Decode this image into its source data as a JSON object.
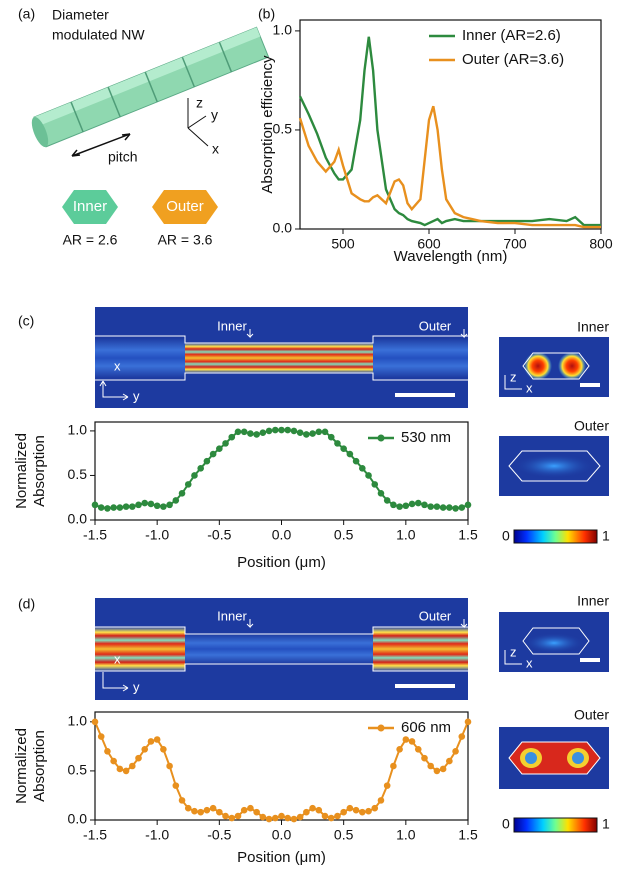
{
  "chart_data": [
    {
      "type": "line",
      "xlabel": "Wavelength (nm)",
      "ylabel": "Absorption efficiency",
      "x": [
        450,
        460,
        470,
        480,
        490,
        495,
        500,
        510,
        520,
        525,
        530,
        535,
        540,
        550,
        560,
        565,
        570,
        575,
        580,
        590,
        595,
        600,
        605,
        610,
        615,
        620,
        630,
        640,
        650,
        660,
        680,
        700,
        720,
        740,
        760,
        770,
        780,
        800
      ],
      "series": [
        {
          "name": "Inner (AR=2.6)",
          "color": "#2d8a3e",
          "values": [
            0.67,
            0.58,
            0.48,
            0.36,
            0.28,
            0.25,
            0.25,
            0.3,
            0.55,
            0.8,
            0.97,
            0.8,
            0.5,
            0.2,
            0.1,
            0.08,
            0.07,
            0.05,
            0.04,
            0.03,
            0.02,
            0.03,
            0.04,
            0.05,
            0.03,
            0.04,
            0.05,
            0.04,
            0.04,
            0.04,
            0.04,
            0.04,
            0.04,
            0.05,
            0.04,
            0.06,
            0.02,
            0.02
          ]
        },
        {
          "name": "Outer (AR=3.6)",
          "color": "#e8901e",
          "values": [
            0.56,
            0.42,
            0.34,
            0.29,
            0.34,
            0.4,
            0.32,
            0.18,
            0.15,
            0.14,
            0.14,
            0.16,
            0.17,
            0.13,
            0.24,
            0.25,
            0.22,
            0.13,
            0.1,
            0.15,
            0.35,
            0.55,
            0.62,
            0.5,
            0.3,
            0.15,
            0.08,
            0.06,
            0.05,
            0.04,
            0.03,
            0.03,
            0.02,
            0.02,
            0.02,
            0.02,
            0.01,
            0.01
          ]
        }
      ],
      "xlim": [
        450,
        800
      ],
      "xticks": [
        500,
        600,
        700,
        800
      ],
      "ylim": [
        0,
        1.055
      ],
      "yticks": [
        {
          "value": 0,
          "label": "0.0"
        },
        {
          "value": 0.5,
          "label": "0.5"
        },
        {
          "value": 1,
          "label": "1.0"
        }
      ],
      "markers": false,
      "legend": "upper right"
    },
    {
      "type": "line",
      "xlabel": "Position (μm)",
      "ylabel": [
        "Normalized",
        "Absorption"
      ],
      "x": [
        -1.5,
        -1.45,
        -1.4,
        -1.35,
        -1.3,
        -1.25,
        -1.2,
        -1.15,
        -1.1,
        -1.05,
        -1.0,
        -0.95,
        -0.9,
        -0.85,
        -0.8,
        -0.75,
        -0.7,
        -0.65,
        -0.6,
        -0.55,
        -0.5,
        -0.45,
        -0.4,
        -0.35,
        -0.3,
        -0.25,
        -0.2,
        -0.15,
        -0.1,
        -0.05,
        0,
        0.05,
        0.1,
        0.15,
        0.2,
        0.25,
        0.3,
        0.35,
        0.4,
        0.45,
        0.5,
        0.55,
        0.6,
        0.65,
        0.7,
        0.75,
        0.8,
        0.85,
        0.9,
        0.95,
        1.0,
        1.05,
        1.1,
        1.15,
        1.2,
        1.25,
        1.3,
        1.35,
        1.4,
        1.45,
        1.5
      ],
      "series": [
        {
          "name": "530 nm",
          "color": "#2d8a3e",
          "values": [
            0.17,
            0.14,
            0.13,
            0.14,
            0.14,
            0.15,
            0.15,
            0.17,
            0.19,
            0.18,
            0.16,
            0.15,
            0.17,
            0.22,
            0.3,
            0.4,
            0.5,
            0.58,
            0.66,
            0.74,
            0.8,
            0.86,
            0.93,
            0.99,
            0.99,
            0.97,
            0.96,
            0.98,
            1.0,
            1.01,
            1.01,
            1.01,
            1.0,
            0.98,
            0.96,
            0.97,
            0.99,
            0.99,
            0.93,
            0.86,
            0.8,
            0.74,
            0.66,
            0.58,
            0.5,
            0.4,
            0.3,
            0.22,
            0.17,
            0.15,
            0.16,
            0.18,
            0.19,
            0.17,
            0.15,
            0.15,
            0.14,
            0.14,
            0.13,
            0.14,
            0.17
          ]
        }
      ],
      "xlim": [
        -1.5,
        1.5
      ],
      "xticks": [
        -1.5,
        {
          "value": -1,
          "label": "-1.0"
        },
        -0.5,
        {
          "value": 0,
          "label": "0.0"
        },
        0.5,
        {
          "value": 1,
          "label": "1.0"
        },
        1.5
      ],
      "ylim": [
        0,
        1.1
      ],
      "yticks": [
        {
          "value": 0,
          "label": "0.0"
        },
        {
          "value": 0.5,
          "label": "0.5"
        },
        {
          "value": 1,
          "label": "1.0"
        }
      ],
      "markers": true,
      "legend": "upper right"
    },
    {
      "type": "line",
      "xlabel": "Position (μm)",
      "ylabel": [
        "Normalized",
        "Absorption"
      ],
      "x": [
        -1.5,
        -1.45,
        -1.4,
        -1.35,
        -1.3,
        -1.25,
        -1.2,
        -1.15,
        -1.1,
        -1.05,
        -1.0,
        -0.95,
        -0.9,
        -0.85,
        -0.8,
        -0.75,
        -0.7,
        -0.65,
        -0.6,
        -0.55,
        -0.5,
        -0.45,
        -0.4,
        -0.35,
        -0.3,
        -0.25,
        -0.2,
        -0.15,
        -0.1,
        -0.05,
        0,
        0.05,
        0.1,
        0.15,
        0.2,
        0.25,
        0.3,
        0.35,
        0.4,
        0.45,
        0.5,
        0.55,
        0.6,
        0.65,
        0.7,
        0.75,
        0.8,
        0.85,
        0.9,
        0.95,
        1.0,
        1.05,
        1.1,
        1.15,
        1.2,
        1.25,
        1.3,
        1.35,
        1.4,
        1.45,
        1.5
      ],
      "series": [
        {
          "name": "606 nm",
          "color": "#e8901e",
          "values": [
            1.0,
            0.85,
            0.7,
            0.6,
            0.52,
            0.5,
            0.55,
            0.63,
            0.72,
            0.8,
            0.82,
            0.72,
            0.55,
            0.35,
            0.2,
            0.12,
            0.09,
            0.08,
            0.1,
            0.12,
            0.08,
            0.04,
            0.02,
            0.04,
            0.1,
            0.12,
            0.08,
            0.03,
            0.01,
            0.02,
            0.04,
            0.02,
            0.01,
            0.03,
            0.08,
            0.12,
            0.1,
            0.04,
            0.02,
            0.04,
            0.08,
            0.12,
            0.1,
            0.08,
            0.09,
            0.12,
            0.2,
            0.35,
            0.55,
            0.72,
            0.82,
            0.8,
            0.72,
            0.63,
            0.55,
            0.5,
            0.52,
            0.6,
            0.7,
            0.85,
            1.0
          ]
        }
      ],
      "xlim": [
        -1.5,
        1.5
      ],
      "xticks": [
        -1.5,
        {
          "value": -1,
          "label": "-1.0"
        },
        -0.5,
        {
          "value": 0,
          "label": "0.0"
        },
        0.5,
        {
          "value": 1,
          "label": "1.0"
        },
        1.5
      ],
      "ylim": [
        0,
        1.1
      ],
      "yticks": [
        {
          "value": 0,
          "label": "0.0"
        },
        {
          "value": 0.5,
          "label": "0.5"
        },
        {
          "value": 1,
          "label": "1.0"
        }
      ],
      "markers": true,
      "legend": "upper right"
    }
  ],
  "panels": {
    "a": {
      "label": "(a)",
      "title": [
        "Diameter",
        "modulated NW"
      ],
      "pitch": "pitch",
      "axes": [
        "z",
        "y",
        "x"
      ],
      "inner": "Inner",
      "outer": "Outer",
      "inner_ar": "AR = 2.6",
      "outer_ar": "AR = 3.6"
    },
    "b": {
      "label": "(b)"
    },
    "c": {
      "label": "(c)",
      "map_labels": [
        "Inner",
        "Outer"
      ],
      "map_axes": [
        "x",
        "y"
      ],
      "side_titles": [
        "Inner",
        "Outer"
      ],
      "side_axes": [
        "z",
        "x"
      ],
      "colorbar": [
        0,
        1
      ]
    },
    "d": {
      "label": "(d)",
      "map_labels": [
        "Inner",
        "Outer"
      ],
      "map_axes": [
        "x",
        "y"
      ],
      "side_titles": [
        "Inner",
        "Outer"
      ],
      "side_axes": [
        "z",
        "x"
      ],
      "colorbar": [
        0,
        1
      ]
    }
  }
}
